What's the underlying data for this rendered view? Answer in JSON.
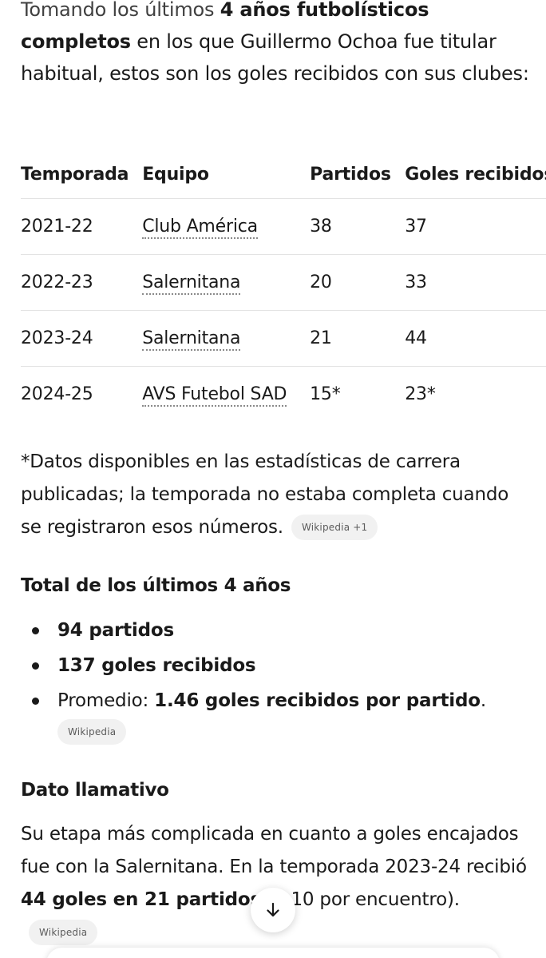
{
  "intro": {
    "t1": "Tomando los últimos ",
    "b1": "4 años futbolísticos completos",
    "t2": " en los que Guillermo Ochoa fue titular habitual, estos son los goles recibidos con sus clubes:"
  },
  "table": {
    "headers": [
      "Temporada",
      "Equipo",
      "Partidos",
      "Goles recibidos"
    ],
    "rows": [
      {
        "season": "2021-22",
        "team": "Club América",
        "matches": "38",
        "goals": "37"
      },
      {
        "season": "2022-23",
        "team": "Salernitana",
        "matches": "20",
        "goals": "33"
      },
      {
        "season": "2023-24",
        "team": "Salernitana",
        "matches": "21",
        "goals": "44"
      },
      {
        "season": "2024-25",
        "team": "AVS Futebol SAD",
        "matches": "15*",
        "goals": "23*"
      }
    ]
  },
  "footnote": {
    "text": "*Datos disponibles en las estadísticas de carrera publicadas; la temporada no estaba completa cuando se registraron esos números.",
    "source_chip": "Wikipedia +1"
  },
  "totals": {
    "heading": "Total de los últimos 4 años",
    "items": [
      {
        "bold": "94 partidos"
      },
      {
        "bold": "137 goles recibidos"
      },
      {
        "prefix": "Promedio: ",
        "bold": "1.46 goles recibidos por partido",
        "suffix": "."
      }
    ],
    "source_chip": "Wikipedia"
  },
  "fact": {
    "heading": "Dato llamativo",
    "t1": "Su etapa más complicada en cuanto a goles encajados fue con la Salernitana. En la temporada 2023-24 recibió ",
    "b1": "44 goles en 21 partidos",
    "t2": " (2.10 por encuentro).",
    "source_chip": "Wikipedia"
  },
  "icons": {
    "scroll": "arrow-down-icon"
  }
}
